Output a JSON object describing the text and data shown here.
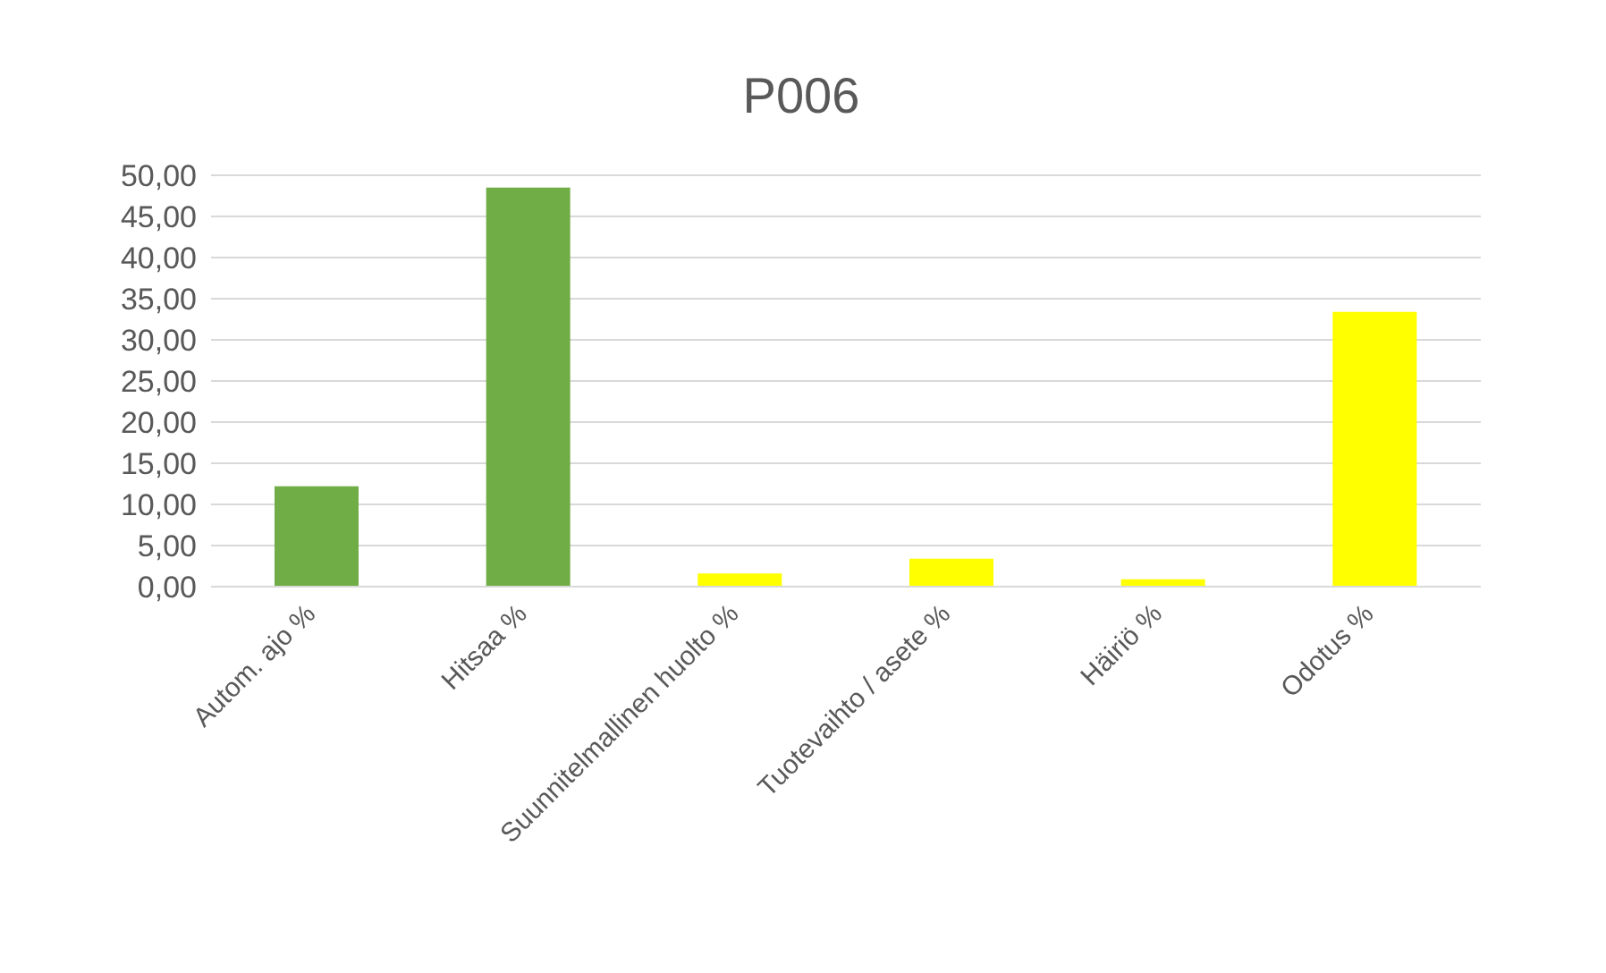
{
  "chart_data": {
    "type": "bar",
    "title": "P006",
    "categories": [
      "Autom. ajo %",
      "Hitsaa %",
      "Suunnitelmallinen huolto %",
      "Tuotevaihto / asete %",
      "Häiriö %",
      "Odotus %"
    ],
    "values": [
      12.2,
      48.5,
      1.6,
      3.4,
      0.9,
      33.4
    ],
    "colors": [
      "#70ad47",
      "#70ad47",
      "#ffff00",
      "#ffff00",
      "#ffff00",
      "#ffff00"
    ],
    "ylim": [
      0,
      50
    ],
    "yticks": [
      {
        "value": 0,
        "label": "0,00"
      },
      {
        "value": 5,
        "label": "5,00"
      },
      {
        "value": 10,
        "label": "10,00"
      },
      {
        "value": 15,
        "label": "15,00"
      },
      {
        "value": 20,
        "label": "20,00"
      },
      {
        "value": 25,
        "label": "25,00"
      },
      {
        "value": 30,
        "label": "30,00"
      },
      {
        "value": 35,
        "label": "35,00"
      },
      {
        "value": 40,
        "label": "40,00"
      },
      {
        "value": 45,
        "label": "45,00"
      },
      {
        "value": 50,
        "label": "50,00"
      }
    ],
    "grid": "y"
  }
}
